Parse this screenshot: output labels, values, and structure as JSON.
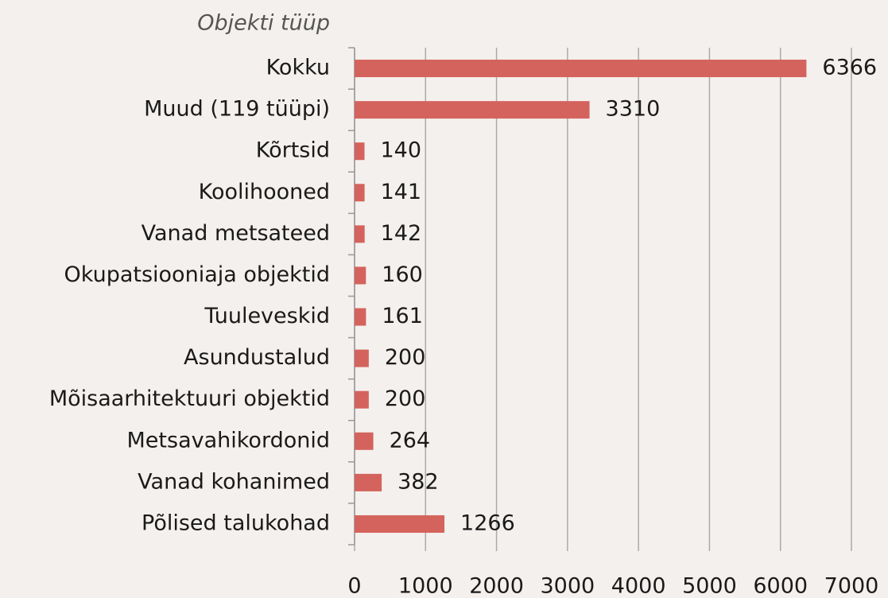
{
  "chart_data": {
    "type": "bar",
    "orientation": "horizontal",
    "axis_title": "Objekti tüüp",
    "categories": [
      "Kokku",
      "Muud (119 tüüpi)",
      "Kõrtsid",
      "Koolihooned",
      "Vanad metsateed",
      "Okupatsiooniaja objektid",
      "Tuuleveskid",
      "Asundustalud",
      "Mõisaarhitektuuri objektid",
      "Metsavahikordonid",
      "Vanad kohanimed",
      "Põlised talukohad"
    ],
    "values": [
      6366,
      3310,
      140,
      141,
      142,
      160,
      161,
      200,
      200,
      264,
      382,
      1266
    ],
    "color": "#d4635d",
    "xlim": [
      0,
      7000
    ],
    "xticks": [
      0,
      1000,
      2000,
      3000,
      4000,
      5000,
      6000,
      7000
    ],
    "grid": true
  }
}
